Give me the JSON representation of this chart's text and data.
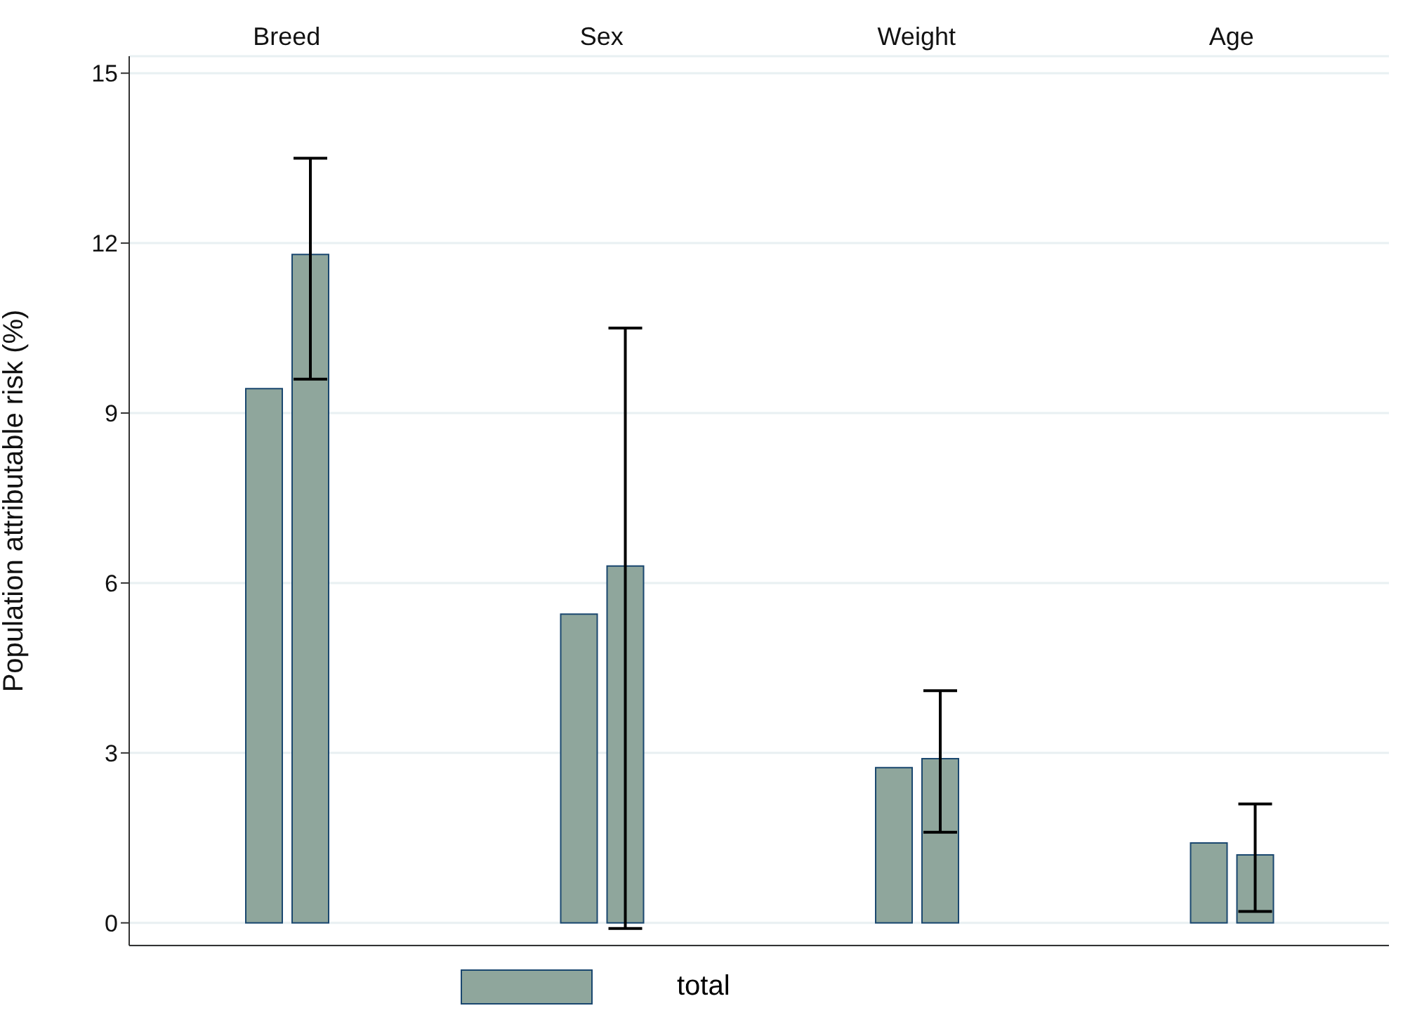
{
  "chart_data": {
    "type": "bar",
    "ylabel": "Population attributable risk (%)",
    "categories": [
      "Breed",
      "Sex",
      "Weight",
      "Age"
    ],
    "ylim": [
      -0.4,
      15.3
    ],
    "yticks": [
      0,
      3,
      6,
      9,
      12,
      15
    ],
    "grid": "y",
    "legend": "bottom",
    "series": [
      {
        "name": "total",
        "color": "#8fa69c",
        "values": [
          9.43,
          5.45,
          2.74,
          1.41
        ]
      },
      {
        "color": "#8fa69c",
        "values": [
          11.8,
          6.3,
          2.9,
          1.2
        ],
        "errors": [
          [
            9.6,
            13.5
          ],
          [
            -0.1,
            10.5
          ],
          [
            1.6,
            4.1
          ],
          [
            0.2,
            2.1
          ]
        ]
      }
    ]
  }
}
